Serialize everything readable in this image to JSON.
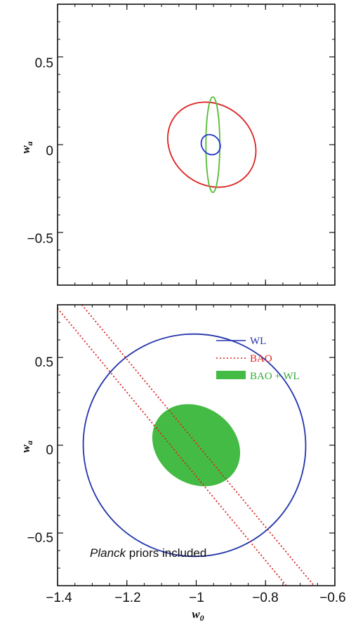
{
  "chart_data": [
    {
      "type": "contour",
      "panel": "top",
      "xlim": [
        -1.4,
        -0.6
      ],
      "ylim": [
        -0.8,
        0.8
      ],
      "xlabel": "",
      "ylabel": "w_a",
      "yticks": [
        -0.5,
        0,
        0.5
      ],
      "ytick_labels": [
        "−0.5",
        "0",
        "0.5"
      ],
      "xticks": [
        -1.4,
        -1.2,
        -1.0,
        -0.8,
        -0.6
      ],
      "grid": false,
      "series": [
        {
          "center": [
            -0.955,
            0.0
          ],
          "extent": [
            0.115,
            0.265
          ],
          "tilt_deg": -52,
          "color": "#dd2222",
          "style": "solid",
          "fill": false
        },
        {
          "center": [
            -0.952,
            0.0
          ],
          "extent": [
            0.02,
            0.272
          ],
          "tilt_deg": 0,
          "color": "#55bb33",
          "style": "solid",
          "fill": false
        },
        {
          "center": [
            -0.958,
            0.0
          ],
          "extent": [
            0.026,
            0.06
          ],
          "tilt_deg": -35,
          "color": "#2233cc",
          "style": "solid",
          "fill": false
        }
      ]
    },
    {
      "type": "contour",
      "panel": "bottom",
      "xlim": [
        -1.4,
        -0.6
      ],
      "ylim": [
        -0.8,
        0.8
      ],
      "xlabel": "w_0",
      "ylabel": "w_a",
      "xticks": [
        -1.4,
        -1.2,
        -1.0,
        -0.8,
        -0.6
      ],
      "xtick_labels": [
        "−1.4",
        "−1.2",
        "−1",
        "−0.8",
        "−0.6"
      ],
      "yticks": [
        -0.5,
        0,
        0.5
      ],
      "ytick_labels": [
        "−0.5",
        "0",
        "0.5"
      ],
      "grid": false,
      "legend_position": "top-right",
      "annotation": {
        "italic": "Planck",
        "rest": " priors included"
      },
      "series": [
        {
          "name": "WL",
          "color": "#2233aa",
          "style": "solid",
          "fill": false,
          "center": [
            -1.005,
            0.0
          ],
          "extent": [
            0.32,
            0.635
          ],
          "tilt_deg": -49
        },
        {
          "name": "BAO",
          "color": "#dd2222",
          "style": "dotted",
          "fill": false,
          "lines": [
            [
              [
                -1.4,
                0.78
              ],
              [
                -0.74,
                -0.8
              ]
            ],
            [
              [
                -1.33,
                0.8
              ],
              [
                -0.66,
                -0.8
              ]
            ]
          ]
        },
        {
          "name": "BAO + WL",
          "color": "#44bb44",
          "style": "filled",
          "fill": true,
          "center": [
            -1.0,
            0.0
          ],
          "extent": [
            0.11,
            0.265
          ],
          "tilt_deg": -55
        }
      ]
    }
  ]
}
